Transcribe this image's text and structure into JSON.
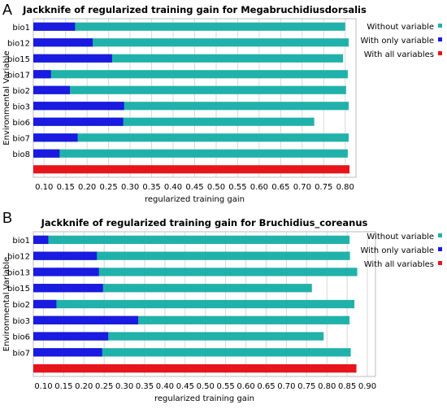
{
  "legend_labels": {
    "without": "Without variable",
    "only": "With only variable",
    "all": "With all variables"
  },
  "colors": {
    "without": "#20b2aa",
    "only": "#1a1ae0",
    "all": "#e8141c",
    "grid": "#d8d8d8"
  },
  "chart_data": [
    {
      "type": "bar",
      "panel_label": "A",
      "title": "Jackknife of regularized training gain for Megabruchidiusdorsalis",
      "xlabel": "regularized training gain",
      "ylabel": "Environmental Variable",
      "xlim": [
        0.075,
        0.825
      ],
      "ticks": [
        0.1,
        0.15,
        0.2,
        0.25,
        0.3,
        0.35,
        0.4,
        0.45,
        0.5,
        0.55,
        0.6,
        0.65,
        0.7,
        0.75,
        0.8
      ],
      "tick_labels": [
        "0.10",
        "0.15",
        "0.20",
        "0.25",
        "0.30",
        "0.35",
        "0.40",
        "0.45",
        "0.50",
        "0.55",
        "0.60",
        "0.65",
        "0.70",
        "0.75",
        "0.80"
      ],
      "grid": true,
      "legend_position": "right",
      "categories": [
        "bio1",
        "bio12",
        "bio15",
        "bio17",
        "bio2",
        "bio3",
        "bio6",
        "bio7",
        "bio8"
      ],
      "series": [
        {
          "name": "Without variable",
          "values": [
            0.8,
            0.808,
            0.795,
            0.806,
            0.802,
            0.808,
            0.728,
            0.808,
            0.806
          ]
        },
        {
          "name": "With only variable",
          "values": [
            0.172,
            0.213,
            0.258,
            0.116,
            0.16,
            0.286,
            0.284,
            0.178,
            0.136
          ]
        }
      ],
      "all_variables": 0.81,
      "all_label": "With all variables"
    },
    {
      "type": "bar",
      "panel_label": "B",
      "title": "Jackknife of regularized training gain for Bruchidius_coreanus",
      "xlabel": "regularized training gain",
      "ylabel": "Environmental Variable",
      "xlim": [
        0.075,
        0.92
      ],
      "ticks": [
        0.1,
        0.15,
        0.2,
        0.25,
        0.3,
        0.35,
        0.4,
        0.45,
        0.5,
        0.55,
        0.6,
        0.65,
        0.7,
        0.75,
        0.8,
        0.85,
        0.9
      ],
      "tick_labels": [
        "0.10",
        "0.15",
        "0.20",
        "0.25",
        "0.30",
        "0.35",
        "0.40",
        "0.45",
        "0.50",
        "0.55",
        "0.60",
        "0.65",
        "0.70",
        "0.75",
        "0.80",
        "0.85",
        "0.90"
      ],
      "grid": true,
      "legend_position": "right",
      "categories": [
        "bio1",
        "bio12",
        "bio13",
        "bio15",
        "bio2",
        "bio3",
        "bio6",
        "bio7"
      ],
      "series": [
        {
          "name": "Without variable",
          "values": [
            0.856,
            0.857,
            0.875,
            0.763,
            0.868,
            0.856,
            0.792,
            0.859
          ]
        },
        {
          "name": "With only variable",
          "values": [
            0.112,
            0.232,
            0.237,
            0.247,
            0.132,
            0.334,
            0.26,
            0.245
          ]
        }
      ],
      "all_variables": 0.873,
      "all_label": "With all variables"
    }
  ]
}
